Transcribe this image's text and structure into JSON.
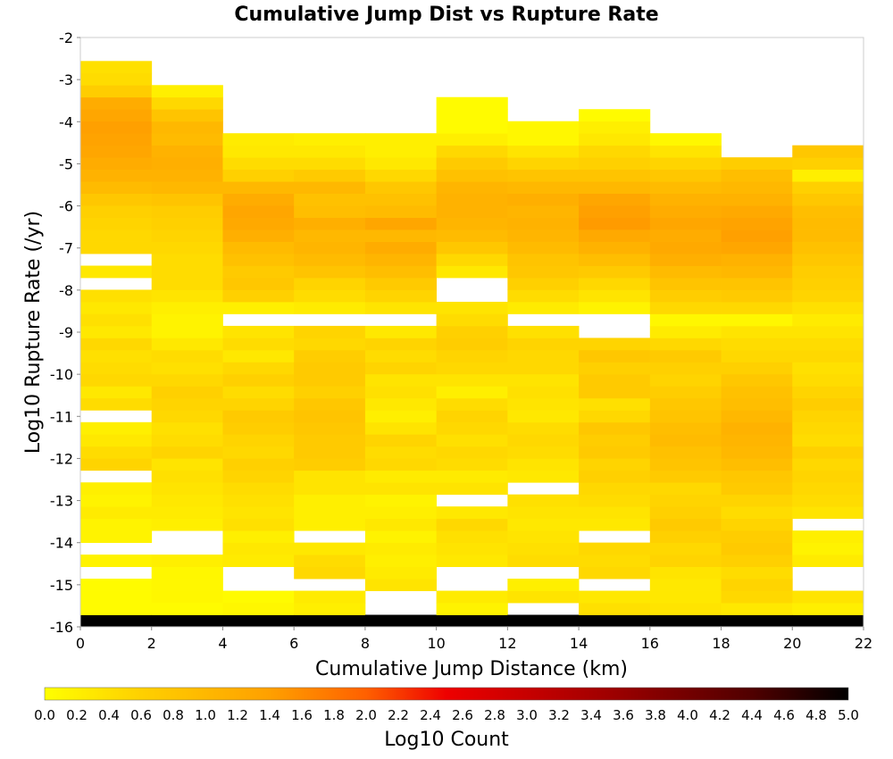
{
  "chart_data": {
    "type": "heatmap",
    "title": "Cumulative Jump Dist vs Rupture Rate",
    "xlabel": "Cumulative Jump Distance (km)",
    "ylabel": "Log10 Rupture Rate (/yr)",
    "xlim": [
      0,
      22
    ],
    "ylim": [
      -16,
      -2
    ],
    "x_ticks": [
      0,
      2,
      4,
      6,
      8,
      10,
      12,
      14,
      16,
      18,
      20,
      22
    ],
    "y_ticks": [
      -2,
      -3,
      -4,
      -5,
      -6,
      -7,
      -8,
      -9,
      -10,
      -11,
      -12,
      -13,
      -14,
      -15,
      -16
    ],
    "x_bin_width": 2,
    "y_bin_height": 0.286,
    "y_bin_start": -16,
    "x_bins": [
      0,
      2,
      4,
      6,
      8,
      10,
      12,
      14,
      16,
      18,
      20
    ],
    "columns": [
      [
        5.0,
        0.05,
        0.05,
        0.05,
        null,
        0.15,
        null,
        0.15,
        0.15,
        0.25,
        0.15,
        0.2,
        null,
        0.55,
        0.45,
        0.3,
        0.2,
        null,
        0.45,
        0.3,
        0.5,
        0.45,
        0.4,
        0.5,
        0.3,
        0.4,
        0.3,
        0.4,
        null,
        0.3,
        null,
        0.5,
        0.5,
        0.55,
        0.6,
        0.75,
        0.95,
        1.1,
        1.2,
        1.3,
        1.35,
        1.4,
        1.3,
        1.2,
        0.65,
        0.45,
        0.4
      ],
      [
        5.0,
        0.05,
        0.1,
        0.1,
        0.1,
        0.2,
        null,
        null,
        0.2,
        0.25,
        0.3,
        0.35,
        0.4,
        0.35,
        0.55,
        0.45,
        0.4,
        0.5,
        0.55,
        0.6,
        0.5,
        0.4,
        0.45,
        0.3,
        0.15,
        0.15,
        0.2,
        0.35,
        0.45,
        0.45,
        0.45,
        0.5,
        0.55,
        0.6,
        0.65,
        0.8,
        1.0,
        1.1,
        1.15,
        1.1,
        0.95,
        1.0,
        0.8,
        0.5,
        0.2,
        null,
        null
      ],
      [
        5.0,
        0.1,
        0.05,
        null,
        null,
        0.25,
        0.3,
        0.2,
        0.4,
        0.35,
        0.4,
        0.45,
        0.55,
        0.6,
        0.5,
        0.55,
        0.65,
        0.7,
        0.55,
        0.45,
        0.6,
        0.5,
        0.3,
        0.45,
        0.35,
        null,
        0.2,
        0.6,
        0.75,
        0.7,
        0.85,
        0.95,
        1.15,
        1.25,
        1.3,
        1.2,
        1.0,
        0.6,
        0.45,
        0.3,
        0.25,
        null,
        null,
        null,
        null,
        null,
        null
      ],
      [
        5.0,
        0.2,
        0.25,
        null,
        0.5,
        0.45,
        0.3,
        null,
        0.2,
        0.2,
        0.2,
        0.35,
        0.35,
        0.65,
        0.7,
        0.7,
        0.75,
        0.8,
        0.75,
        0.6,
        0.7,
        0.7,
        0.65,
        0.5,
        0.55,
        null,
        0.25,
        0.45,
        0.55,
        0.8,
        0.95,
        1.05,
        1.0,
        1.15,
        0.9,
        0.85,
        1.0,
        0.7,
        0.45,
        0.3,
        0.2,
        null,
        null,
        null,
        null,
        null,
        null
      ],
      [
        5.0,
        null,
        null,
        0.35,
        0.25,
        0.2,
        0.25,
        0.15,
        0.3,
        0.2,
        0.15,
        0.35,
        0.25,
        0.5,
        0.45,
        0.55,
        0.35,
        0.2,
        0.3,
        0.4,
        0.35,
        0.55,
        0.45,
        0.55,
        0.3,
        null,
        0.35,
        0.55,
        0.7,
        0.9,
        1.05,
        1.2,
        1.0,
        1.3,
        0.95,
        0.85,
        0.75,
        0.5,
        0.3,
        0.2,
        0.2,
        null,
        null,
        null,
        null,
        null,
        null
      ],
      [
        5.0,
        0.15,
        0.25,
        null,
        null,
        0.3,
        0.35,
        0.4,
        0.5,
        0.3,
        null,
        0.35,
        0.25,
        0.45,
        0.5,
        0.4,
        0.5,
        0.55,
        0.45,
        0.2,
        0.35,
        0.5,
        0.55,
        0.65,
        0.6,
        0.45,
        0.35,
        null,
        null,
        0.3,
        0.5,
        0.75,
        0.95,
        1.05,
        1.1,
        1.1,
        1.05,
        0.85,
        0.7,
        0.5,
        0.2,
        0.05,
        0.05,
        0.05,
        null,
        null,
        null
      ],
      [
        5.0,
        null,
        0.35,
        0.2,
        null,
        0.45,
        0.4,
        0.35,
        0.3,
        0.35,
        0.4,
        null,
        0.3,
        0.35,
        0.45,
        0.5,
        0.45,
        0.3,
        0.35,
        0.4,
        0.35,
        0.5,
        0.5,
        0.55,
        0.4,
        null,
        0.25,
        0.45,
        0.6,
        0.75,
        0.8,
        0.95,
        1.05,
        1.1,
        1.05,
        1.15,
        1.0,
        0.8,
        0.55,
        0.35,
        0.1,
        0.1,
        null,
        null,
        null,
        null,
        null
      ],
      [
        5.0,
        0.4,
        0.3,
        null,
        0.5,
        0.45,
        0.5,
        null,
        0.3,
        0.35,
        0.45,
        0.5,
        0.6,
        0.55,
        0.7,
        0.65,
        0.75,
        0.5,
        0.4,
        0.7,
        0.7,
        0.6,
        0.75,
        0.55,
        null,
        null,
        0.15,
        0.35,
        0.5,
        0.7,
        0.9,
        1.1,
        1.25,
        1.45,
        1.4,
        1.3,
        1.0,
        0.8,
        0.6,
        0.5,
        0.3,
        0.2,
        0.05,
        null,
        null,
        null,
        null
      ],
      [
        5.0,
        0.35,
        0.3,
        0.3,
        0.35,
        0.55,
        0.5,
        0.6,
        0.7,
        0.6,
        0.55,
        0.5,
        0.7,
        0.8,
        0.85,
        0.95,
        0.9,
        0.8,
        0.75,
        0.65,
        0.55,
        0.6,
        0.7,
        0.5,
        0.25,
        0.1,
        0.5,
        0.65,
        0.8,
        0.95,
        1.15,
        1.25,
        1.2,
        1.3,
        1.2,
        1.1,
        0.95,
        0.75,
        0.55,
        0.35,
        0.1,
        null,
        null,
        null,
        null,
        null,
        null
      ],
      [
        5.0,
        0.3,
        0.5,
        0.55,
        0.45,
        0.6,
        0.7,
        0.65,
        0.55,
        0.45,
        0.55,
        0.7,
        0.75,
        0.9,
        1.0,
        1.05,
        1.1,
        1.0,
        0.9,
        0.85,
        0.75,
        0.6,
        0.5,
        0.45,
        0.35,
        0.1,
        0.5,
        0.7,
        0.8,
        1.0,
        1.1,
        1.3,
        1.4,
        1.35,
        1.25,
        1.1,
        1.0,
        0.9,
        0.65,
        null,
        null,
        null,
        null,
        null,
        null,
        null,
        null
      ],
      [
        5.0,
        0.2,
        0.35,
        null,
        null,
        0.25,
        0.15,
        0.2,
        null,
        0.35,
        0.45,
        0.5,
        0.55,
        0.5,
        0.6,
        0.45,
        0.5,
        0.55,
        0.65,
        0.55,
        0.45,
        0.4,
        0.5,
        0.45,
        0.35,
        0.25,
        0.4,
        0.55,
        0.6,
        0.65,
        0.75,
        0.85,
        0.95,
        0.95,
        0.9,
        0.75,
        0.6,
        0.2,
        0.6,
        0.75,
        null,
        null,
        null,
        null,
        null,
        null,
        null
      ]
    ]
  }
}
